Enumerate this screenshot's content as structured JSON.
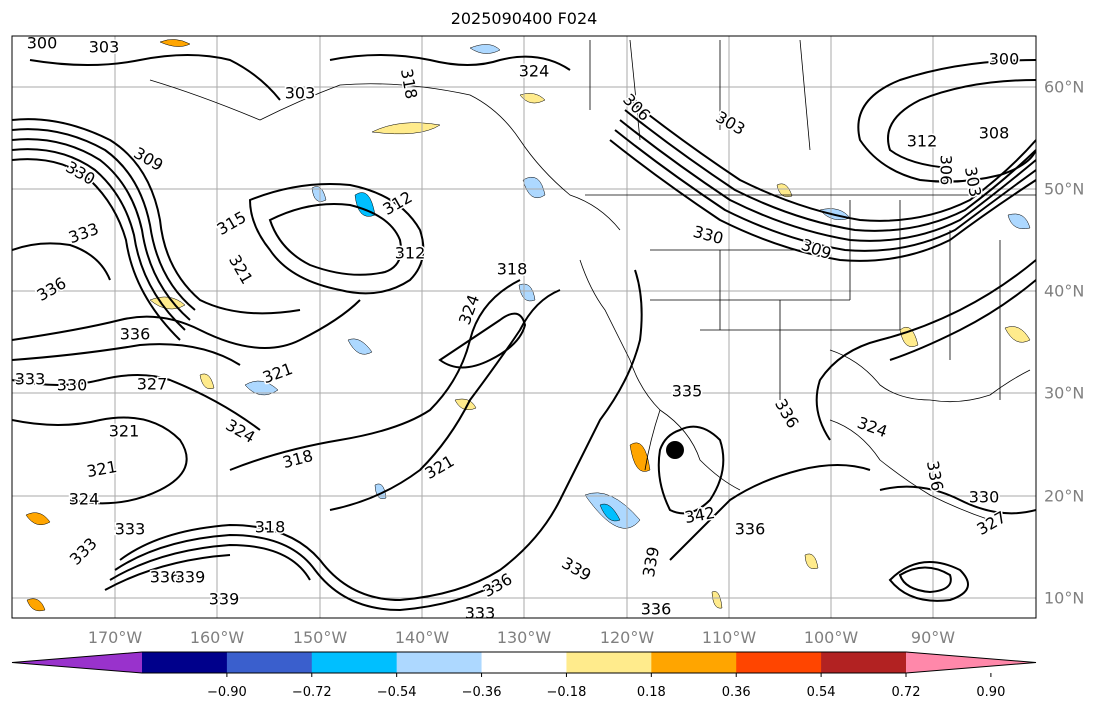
{
  "title": "2025090400 F024",
  "longitude_labels": [
    "170°W",
    "160°W",
    "150°W",
    "140°W",
    "130°W",
    "120°W",
    "110°W",
    "100°W",
    "90°W"
  ],
  "latitude_labels": [
    "60°N",
    "50°N",
    "40°N",
    "30°N",
    "20°N",
    "10°N"
  ],
  "contour_labels": [
    {
      "text": "300"
    },
    {
      "text": "303"
    },
    {
      "text": "324"
    },
    {
      "text": "318"
    },
    {
      "text": "303"
    },
    {
      "text": "306"
    },
    {
      "text": "300"
    },
    {
      "text": "312"
    },
    {
      "text": "308"
    },
    {
      "text": "306"
    },
    {
      "text": "303"
    },
    {
      "text": "303"
    },
    {
      "text": "309"
    },
    {
      "text": "330"
    },
    {
      "text": "333"
    },
    {
      "text": "315"
    },
    {
      "text": "312"
    },
    {
      "text": "312"
    },
    {
      "text": "318"
    },
    {
      "text": "330"
    },
    {
      "text": "309"
    },
    {
      "text": "321"
    },
    {
      "text": "336"
    },
    {
      "text": "324"
    },
    {
      "text": "333"
    },
    {
      "text": "336"
    },
    {
      "text": "321"
    },
    {
      "text": "321"
    },
    {
      "text": "327"
    },
    {
      "text": "330"
    },
    {
      "text": "335"
    },
    {
      "text": "336"
    },
    {
      "text": "324"
    },
    {
      "text": "318"
    },
    {
      "text": "321"
    },
    {
      "text": "321"
    },
    {
      "text": "324"
    },
    {
      "text": "333"
    },
    {
      "text": "318"
    },
    {
      "text": "339"
    },
    {
      "text": "342"
    },
    {
      "text": "336"
    },
    {
      "text": "336"
    },
    {
      "text": "339"
    },
    {
      "text": "336"
    },
    {
      "text": "333"
    },
    {
      "text": "336"
    },
    {
      "text": "330"
    },
    {
      "text": "327"
    },
    {
      "text": "324"
    },
    {
      "text": "333"
    },
    {
      "text": "336"
    },
    {
      "text": "339"
    },
    {
      "text": "339"
    }
  ],
  "colorbar": {
    "colors": [
      "#9932cc",
      "#00008b",
      "#3a5fcd",
      "#00bfff",
      "#add8ff",
      "#ffffff",
      "#ffeb8c",
      "#ffa500",
      "#ff4500",
      "#b22222",
      "#ff88aa"
    ],
    "tick_labels": [
      "−0.90",
      "−0.72",
      "−0.54",
      "−0.36",
      "−0.18",
      "0.18",
      "0.36",
      "0.54",
      "0.72",
      "0.90"
    ]
  },
  "colors": {
    "grid": "#aaaaaa",
    "contour": "#000000",
    "axis_label": "#808080"
  }
}
